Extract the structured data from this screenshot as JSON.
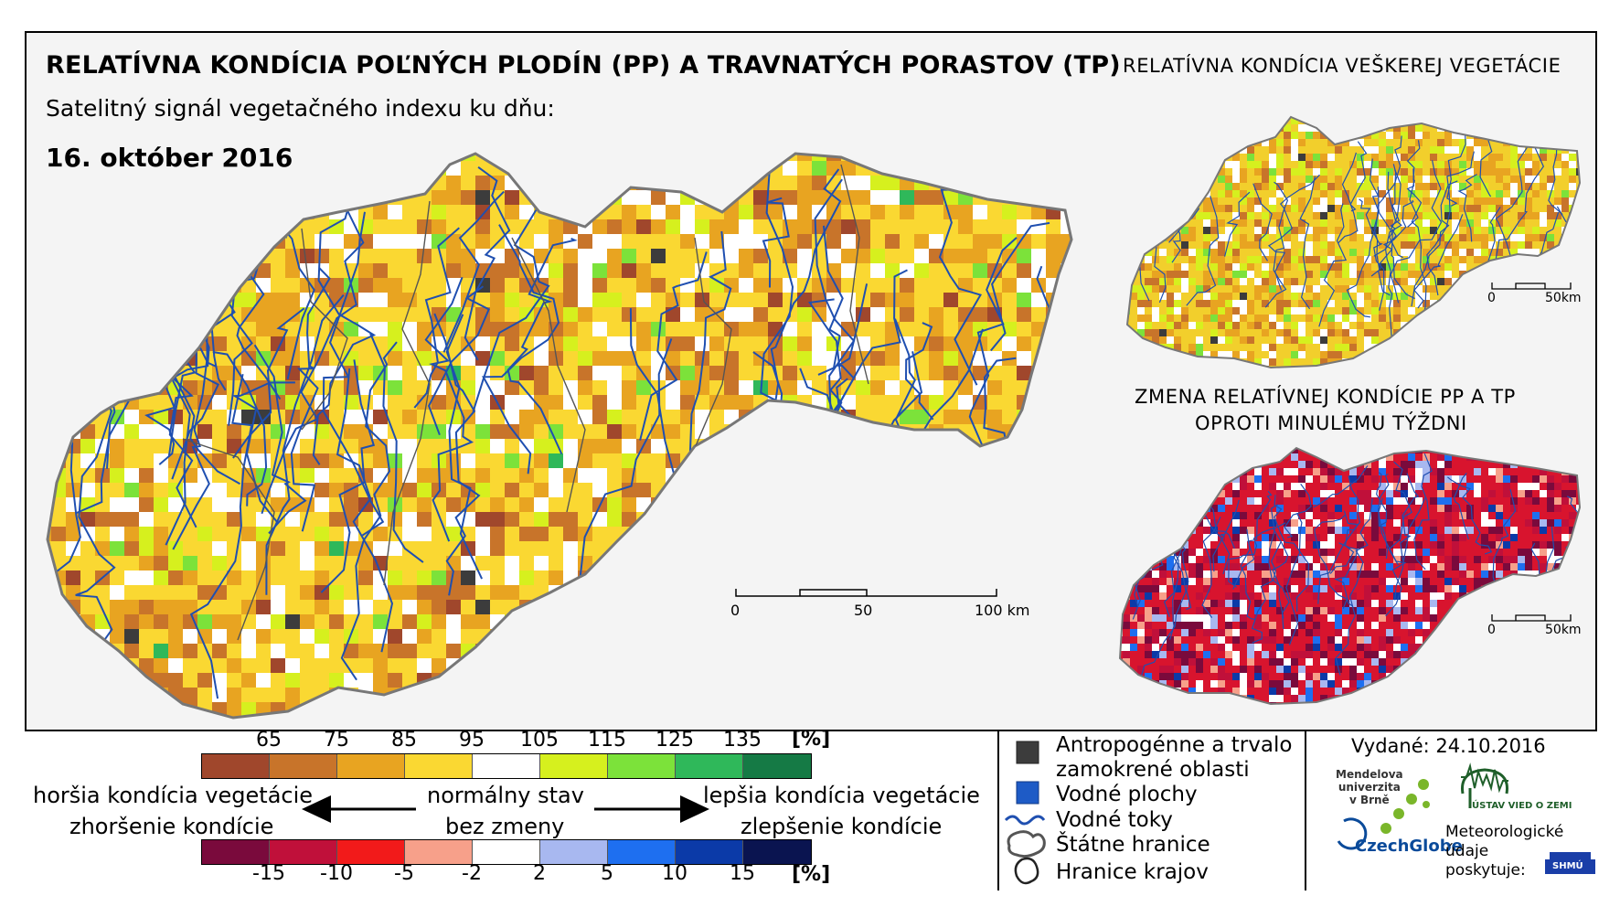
{
  "title": "RELATÍVNA KONDÍCIA POĽNÝCH PLODÍN (PP) A TRAVNATÝCH PORASTOV (TP)",
  "subtitle": "Satelitný signál vegetačného indexu ku dňu:",
  "date": "16. október 2016",
  "inset_top": {
    "title": "RELATÍVNA KONDÍCIA VEŠKEREJ VEGETÁCIE",
    "scale": {
      "zero": "0",
      "end": "50km"
    }
  },
  "inset_bottom": {
    "title_line1": "ZMENA RELATÍVNEJ KONDÍCIE PP A TP",
    "title_line2": "OPROTI MINULÉMU TÝŽDNI",
    "scale": {
      "zero": "0",
      "end": "50km"
    }
  },
  "main_scale": {
    "t0": "0",
    "t1": "50",
    "t2": "100 km"
  },
  "legend": {
    "condition_ticks": [
      "65",
      "75",
      "85",
      "95",
      "105",
      "115",
      "125",
      "135"
    ],
    "condition_unit": "[%]",
    "condition_colors": [
      "#a0472c",
      "#c8742a",
      "#e8a421",
      "#fad832",
      "#ffffff",
      "#d6f01e",
      "#7ce23a",
      "#2fb85a",
      "#157a45"
    ],
    "change_ticks": [
      "-15",
      "-10",
      "-5",
      "-2",
      "2",
      "5",
      "10",
      "15"
    ],
    "change_unit": "[%]",
    "change_colors": [
      "#7a0a3c",
      "#c0103a",
      "#f21a1a",
      "#f7a08a",
      "#ffffff",
      "#a8b8f0",
      "#1e6ff0",
      "#0b3aa8",
      "#0a1450"
    ],
    "worse_line1": "horšia kondícia vegetácie",
    "worse_line2": "zhoršenie kondície",
    "normal_line1": "normálny stav",
    "normal_line2": "bez zmeny",
    "better_line1": "lepšia kondícia vegetácie",
    "better_line2": "zlepšenie kondície"
  },
  "map_legend": {
    "anthro_line1": "Antropogénne a trvalo",
    "anthro_line2": "zamokrené oblasti",
    "water_areas": "Vodné plochy",
    "rivers": "Vodné toky",
    "borders": "Štátne hranice",
    "regions": "Hranice krajov"
  },
  "issued": "Vydané: 24.10.2016",
  "credits": {
    "mendel_line1": "Mendelova",
    "mendel_line2": "univerzita",
    "mendel_line3": "v Brně",
    "czechglobe": "CzechGlobe",
    "institute": "ÚSTAV VIED O ZEMI",
    "met_line1": "Meteorologické",
    "met_line2": "údaje",
    "met_line3": "poskytuje:",
    "shmu": "SHMÚ"
  },
  "colors": {
    "anthro": "#3c3c3c",
    "water": "#1e5bc6",
    "river": "#1f4fb0",
    "border": "#888888"
  }
}
